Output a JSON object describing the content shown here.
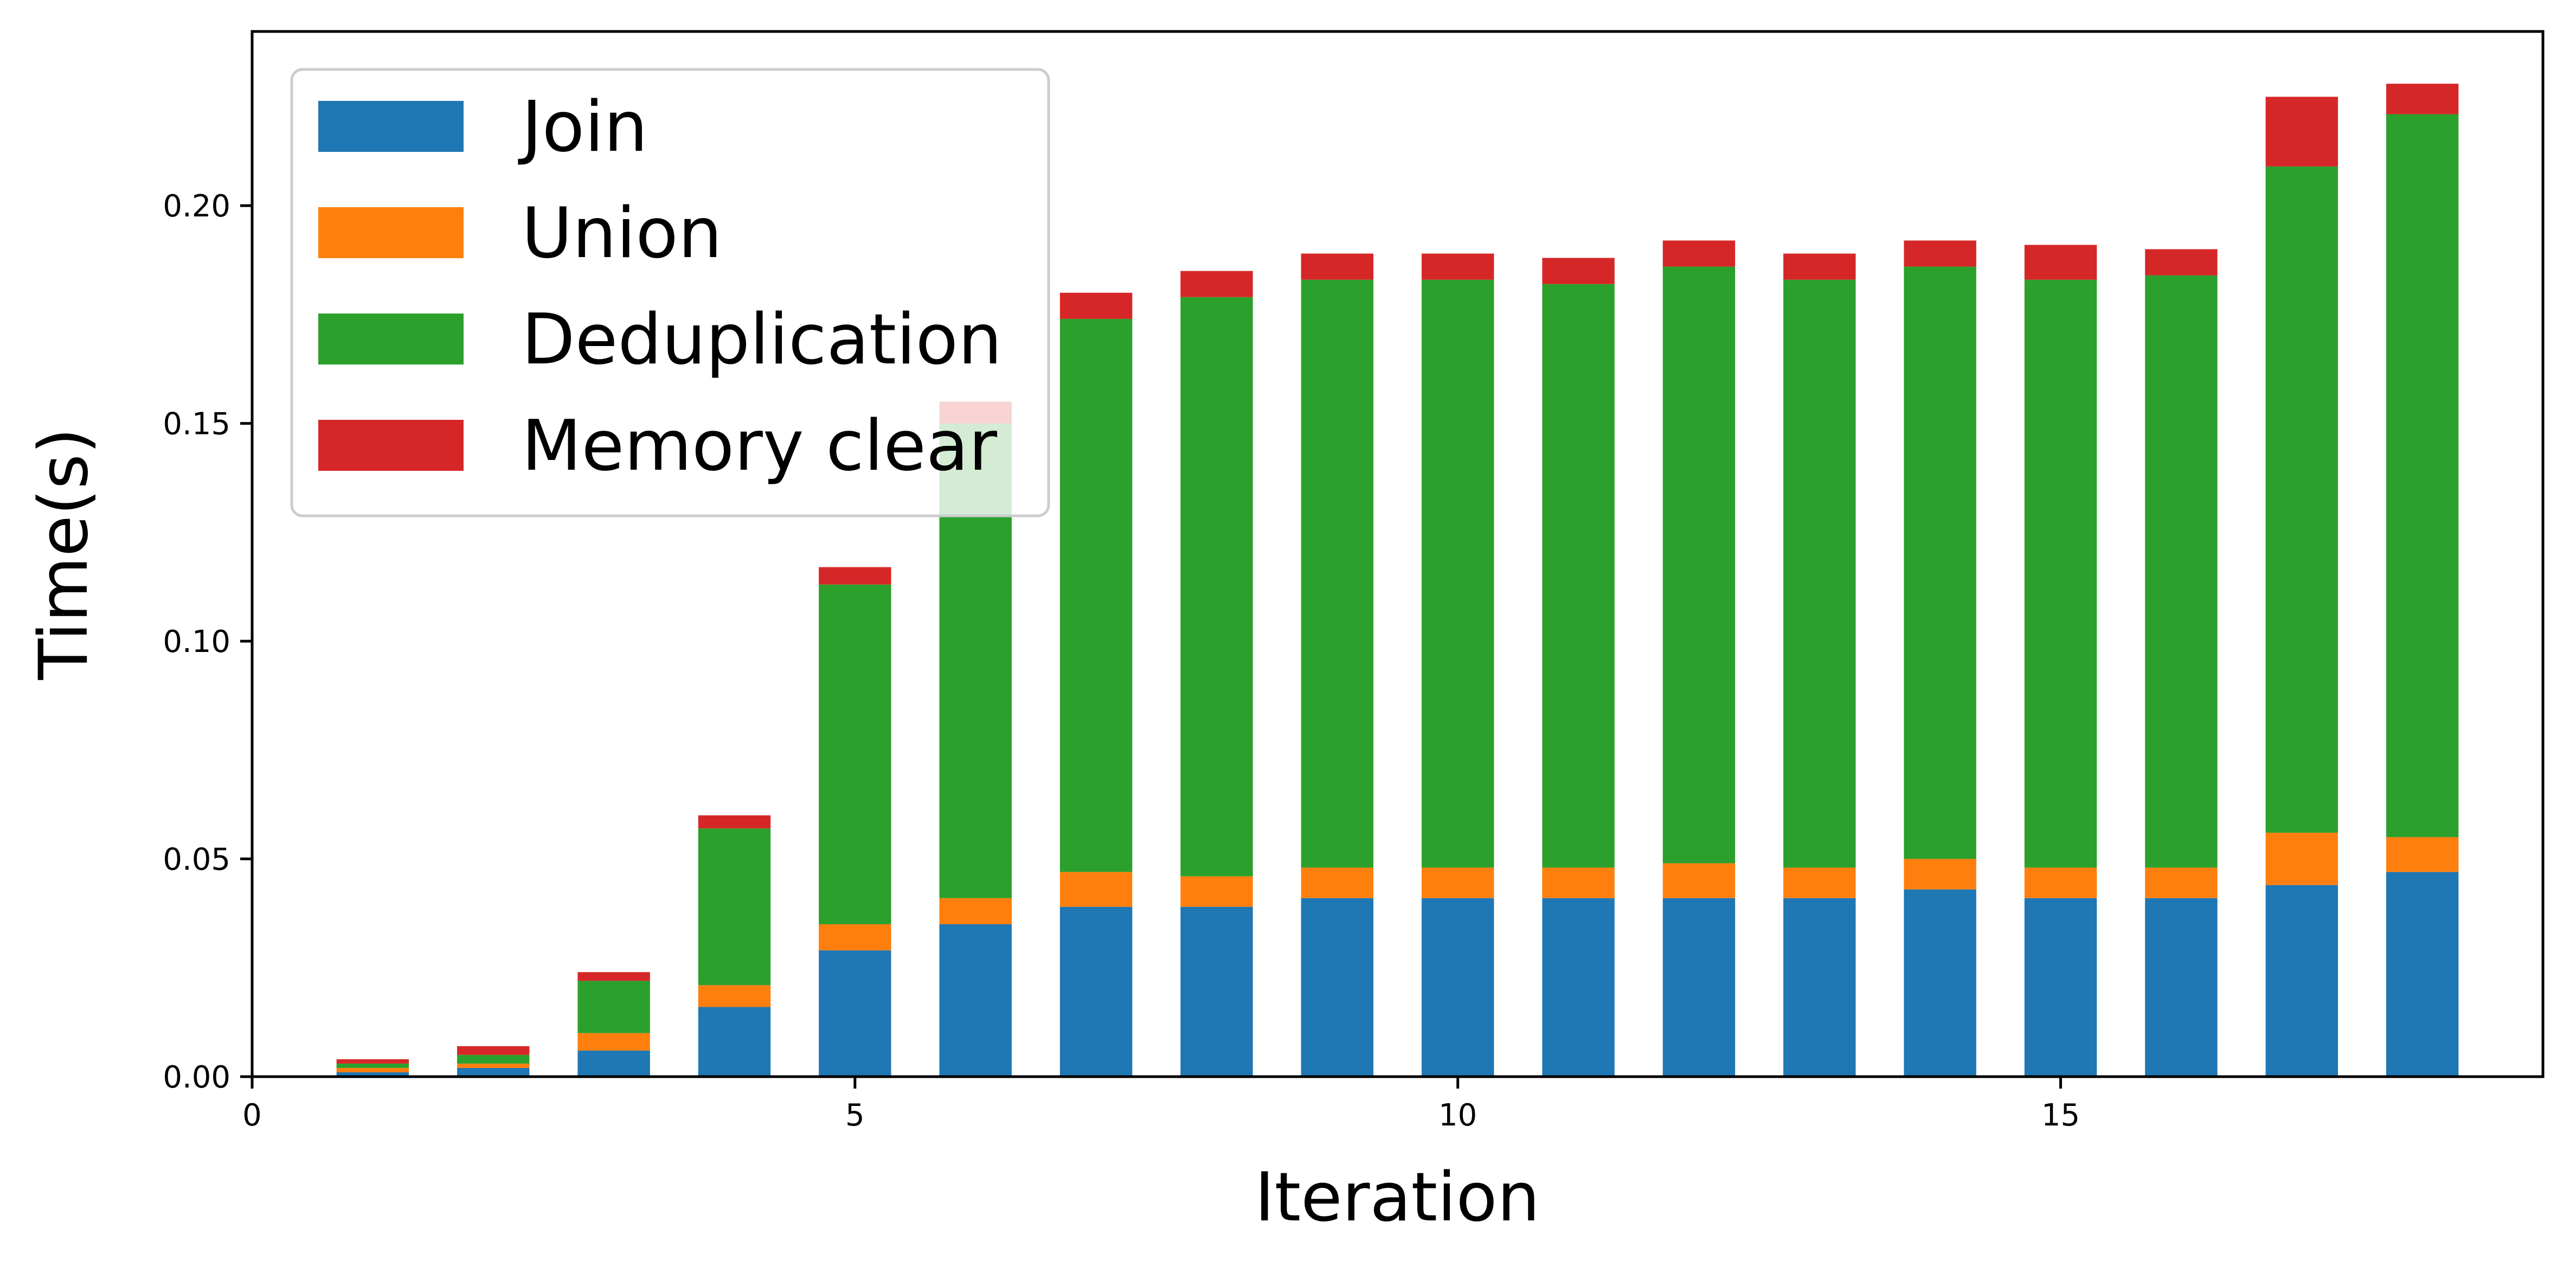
{
  "chart_data": {
    "type": "bar",
    "stacked": true,
    "title": "",
    "xlabel": "Iteration",
    "ylabel": "Time(s)",
    "xlim": [
      0,
      19
    ],
    "ylim": [
      0,
      0.24
    ],
    "x_ticks": [
      0,
      5,
      10,
      15
    ],
    "x_tick_labels": [
      "0",
      "5",
      "10",
      "15"
    ],
    "y_ticks": [
      0,
      0.05,
      0.1,
      0.15,
      0.2
    ],
    "y_tick_labels": [
      "0.00",
      "0.05",
      "0.10",
      "0.15",
      "0.20"
    ],
    "grid": false,
    "legend_position": "upper-left",
    "x": [
      1,
      2,
      3,
      4,
      5,
      6,
      7,
      8,
      9,
      10,
      11,
      12,
      13,
      14,
      15,
      16,
      17,
      18
    ],
    "series": [
      {
        "name": "Join",
        "color": "#1f77b4",
        "values": [
          0.001,
          0.002,
          0.006,
          0.016,
          0.029,
          0.035,
          0.039,
          0.039,
          0.041,
          0.041,
          0.041,
          0.041,
          0.041,
          0.043,
          0.041,
          0.041,
          0.044,
          0.047
        ]
      },
      {
        "name": "Union",
        "color": "#ff7f0e",
        "values": [
          0.001,
          0.001,
          0.004,
          0.005,
          0.006,
          0.006,
          0.008,
          0.007,
          0.007,
          0.007,
          0.007,
          0.008,
          0.007,
          0.007,
          0.007,
          0.007,
          0.012,
          0.008
        ]
      },
      {
        "name": "Deduplication",
        "color": "#2ca02c",
        "values": [
          0.001,
          0.002,
          0.012,
          0.036,
          0.078,
          0.109,
          0.127,
          0.133,
          0.135,
          0.135,
          0.134,
          0.137,
          0.135,
          0.136,
          0.135,
          0.136,
          0.153,
          0.166
        ]
      },
      {
        "name": "Memory clear",
        "color": "#d62728",
        "values": [
          0.001,
          0.002,
          0.002,
          0.003,
          0.004,
          0.005,
          0.006,
          0.006,
          0.006,
          0.006,
          0.006,
          0.006,
          0.006,
          0.006,
          0.008,
          0.006,
          0.016,
          0.007
        ]
      }
    ]
  }
}
